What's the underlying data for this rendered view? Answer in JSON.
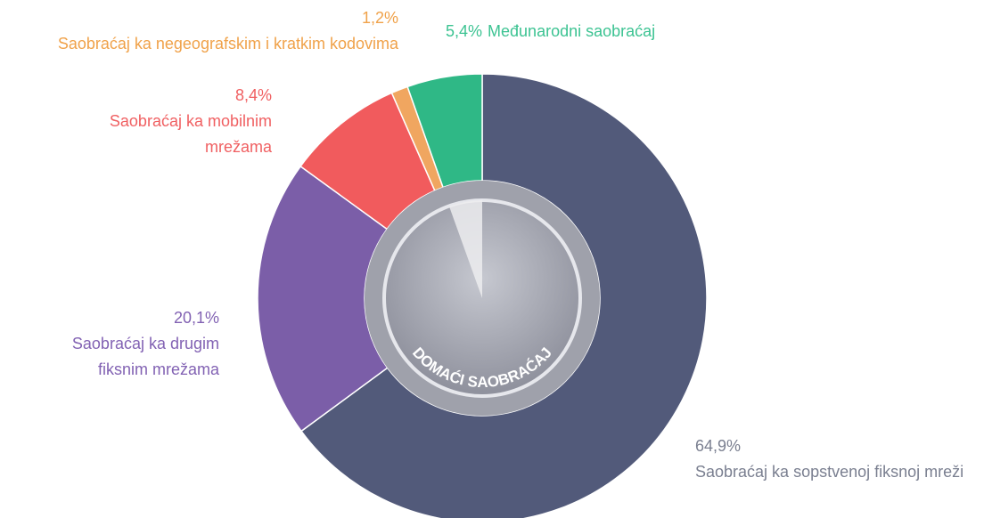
{
  "chart_data": {
    "type": "donut",
    "center_label": "DOMAĆI SAOBRAĆAJ",
    "categories": [
      "Saobraćaj ka sopstvenoj fiksnoj mreži",
      "Saobraćaj ka drugim fiksnim mrežama",
      "Saobraćaj ka mobilnim mrežama",
      "Saobraćaj ka negeografskim i kratkim kodovima",
      "Međunarodni saobraćaj"
    ],
    "values": [
      64.9,
      20.1,
      8.4,
      1.2,
      5.4
    ],
    "value_labels": [
      "64,9%",
      "20,1%",
      "8,4%",
      "1,2%",
      "5,4%"
    ],
    "colors": [
      "#525a7a",
      "#7b5ea8",
      "#f15b5d",
      "#f0a660",
      "#2fb886"
    ],
    "label_colors": [
      "#7a7f90",
      "#8262b3",
      "#f06062",
      "#f0a24a",
      "#3cc392"
    ]
  }
}
